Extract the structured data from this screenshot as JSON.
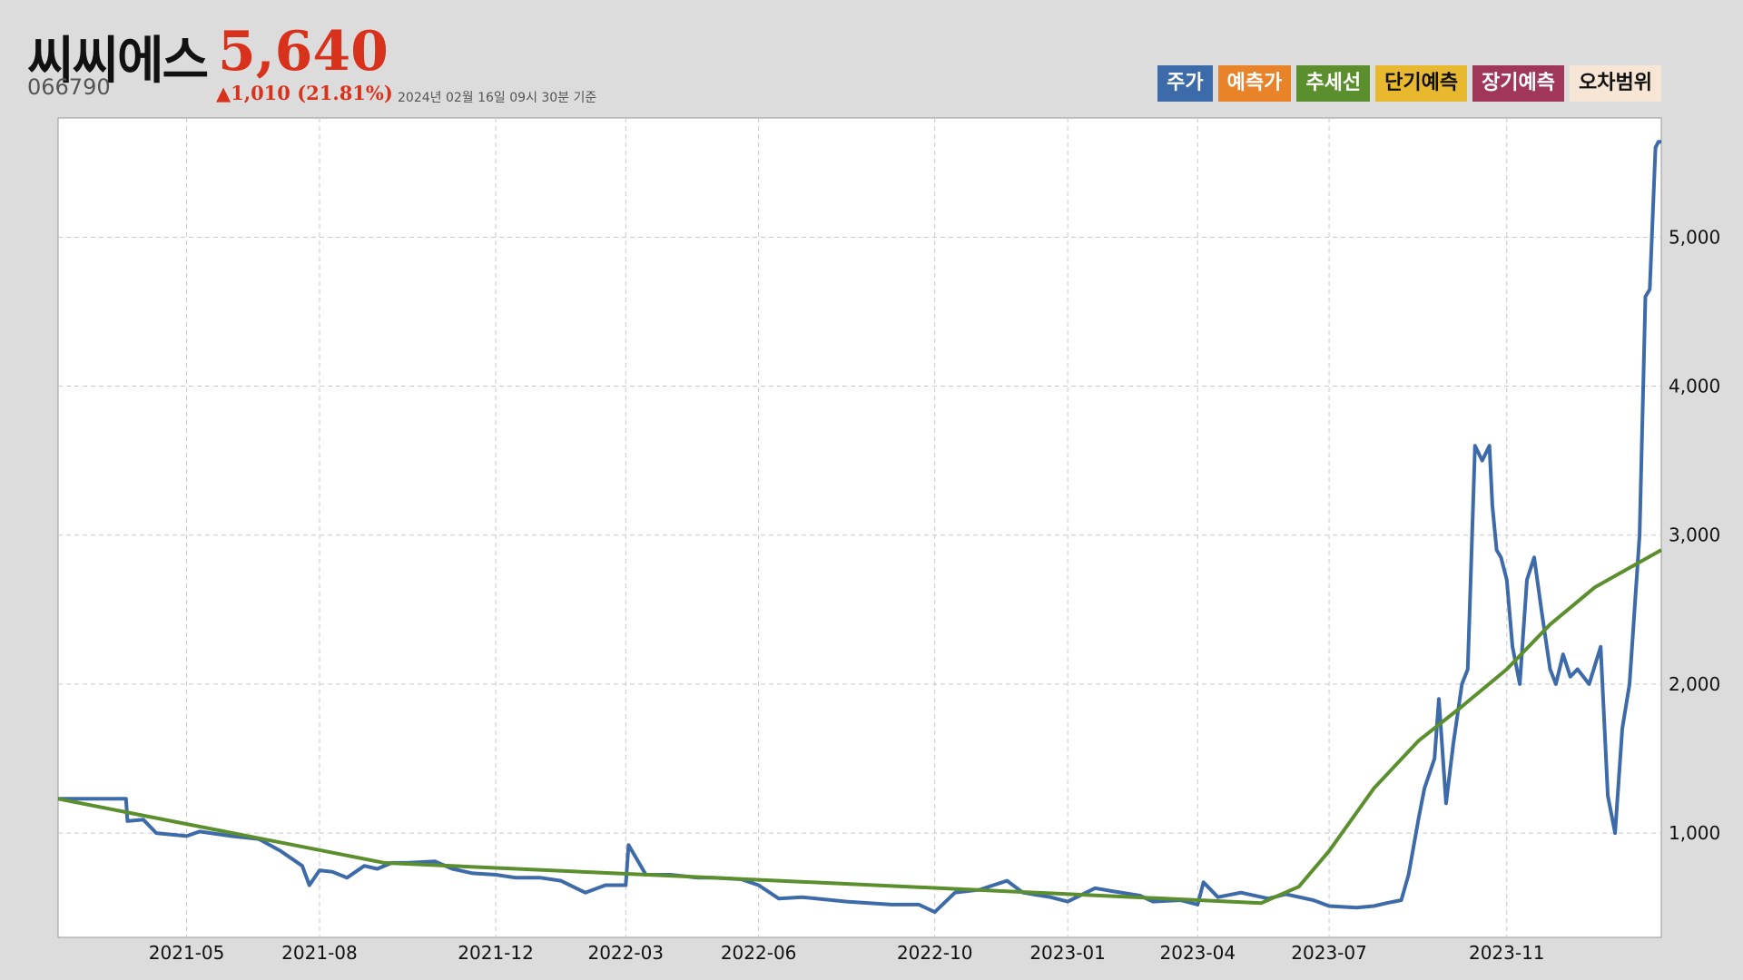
{
  "header": {
    "stock_name": "씨씨에스",
    "price": "5,640",
    "code": "066790",
    "change": "▲1,010 (21.81%)",
    "as_of": "2024년 02월 16일 09시 30분 기준"
  },
  "legend": [
    {
      "label": "주가",
      "bg": "#3d6aa8",
      "fg": "#ffffff"
    },
    {
      "label": "예측가",
      "bg": "#e8832a",
      "fg": "#ffffff"
    },
    {
      "label": "추세선",
      "bg": "#5b8f2e",
      "fg": "#ffffff"
    },
    {
      "label": "단기예측",
      "bg": "#e8b92e",
      "fg": "#111111"
    },
    {
      "label": "장기예측",
      "bg": "#a0365a",
      "fg": "#ffffff"
    },
    {
      "label": "오차범위",
      "bg": "#f7e6d6",
      "fg": "#111111"
    }
  ],
  "colors": {
    "price_line": "#3d6aa8",
    "trend_line": "#5b8f2e",
    "grid": "#c8c8c8",
    "up": "#d8321c"
  },
  "chart_data": {
    "type": "line",
    "y_ticks": [
      "1,000",
      "2,000",
      "3,000",
      "4,000",
      "5,000"
    ],
    "y_tick_values": [
      1000,
      2000,
      3000,
      4000,
      5000
    ],
    "x_ticks": [
      "2021-05",
      "2021-08",
      "2021-12",
      "2022-03",
      "2022-06",
      "2022-10",
      "2023-01",
      "2023-04",
      "2023-07",
      "2023-11"
    ],
    "x_tick_dates": [
      "2021-05-01",
      "2021-08-01",
      "2021-12-01",
      "2022-03-01",
      "2022-06-01",
      "2022-10-01",
      "2023-01-01",
      "2023-04-01",
      "2023-07-01",
      "2023-11-01"
    ],
    "xlim": [
      "2021-02-01",
      "2024-02-16"
    ],
    "ylim": [
      300,
      5800
    ],
    "grid": true,
    "legend_position": "top-right",
    "series": [
      {
        "name": "주가",
        "x": [
          "2021-02-01",
          "2021-03-20",
          "2021-03-21",
          "2021-04-01",
          "2021-04-10",
          "2021-05-01",
          "2021-05-10",
          "2021-06-01",
          "2021-06-20",
          "2021-07-05",
          "2021-07-20",
          "2021-07-25",
          "2021-08-01",
          "2021-08-10",
          "2021-08-20",
          "2021-09-01",
          "2021-09-10",
          "2021-09-20",
          "2021-10-01",
          "2021-10-20",
          "2021-11-01",
          "2021-11-15",
          "2021-12-01",
          "2021-12-15",
          "2022-01-01",
          "2022-01-15",
          "2022-02-01",
          "2022-02-15",
          "2022-03-01",
          "2022-03-03",
          "2022-03-15",
          "2022-04-01",
          "2022-04-20",
          "2022-05-01",
          "2022-05-20",
          "2022-06-01",
          "2022-06-15",
          "2022-07-01",
          "2022-08-01",
          "2022-09-01",
          "2022-09-20",
          "2022-10-01",
          "2022-10-15",
          "2022-11-01",
          "2022-11-20",
          "2022-12-01",
          "2022-12-20",
          "2023-01-01",
          "2023-01-20",
          "2023-02-01",
          "2023-02-20",
          "2023-03-01",
          "2023-03-20",
          "2023-04-01",
          "2023-04-05",
          "2023-04-15",
          "2023-05-01",
          "2023-05-20",
          "2023-06-01",
          "2023-06-20",
          "2023-07-01",
          "2023-07-20",
          "2023-08-01",
          "2023-08-10",
          "2023-08-20",
          "2023-08-25",
          "2023-09-01",
          "2023-09-05",
          "2023-09-12",
          "2023-09-15",
          "2023-09-20",
          "2023-09-25",
          "2023-10-01",
          "2023-10-05",
          "2023-10-10",
          "2023-10-15",
          "2023-10-20",
          "2023-10-22",
          "2023-10-25",
          "2023-10-28",
          "2023-11-01",
          "2023-11-05",
          "2023-11-10",
          "2023-11-15",
          "2023-11-20",
          "2023-11-25",
          "2023-12-01",
          "2023-12-05",
          "2023-12-10",
          "2023-12-15",
          "2023-12-20",
          "2023-12-28",
          "2024-01-05",
          "2024-01-10",
          "2024-01-15",
          "2024-01-20",
          "2024-01-25",
          "2024-02-01",
          "2024-02-05",
          "2024-02-08",
          "2024-02-12",
          "2024-02-14",
          "2024-02-16"
        ],
        "values": [
          1230,
          1230,
          1080,
          1090,
          1000,
          980,
          1010,
          980,
          960,
          880,
          780,
          650,
          750,
          740,
          700,
          780,
          760,
          800,
          800,
          810,
          760,
          730,
          720,
          700,
          700,
          680,
          600,
          650,
          650,
          920,
          720,
          720,
          700,
          700,
          690,
          650,
          560,
          570,
          540,
          520,
          520,
          470,
          600,
          620,
          680,
          600,
          570,
          540,
          630,
          610,
          580,
          540,
          550,
          520,
          670,
          570,
          600,
          560,
          590,
          550,
          510,
          500,
          510,
          530,
          550,
          720,
          1100,
          1300,
          1500,
          1900,
          1200,
          1600,
          2000,
          2100,
          3600,
          3500,
          3600,
          3200,
          2900,
          2850,
          2700,
          2250,
          2000,
          2700,
          2850,
          2500,
          2100,
          2000,
          2200,
          2050,
          2100,
          2000,
          2250,
          1250,
          1000,
          1700,
          2000,
          3000,
          4600,
          4650,
          5600,
          5640,
          5640
        ]
      },
      {
        "name": "추세선",
        "x": [
          "2021-02-01",
          "2021-09-15",
          "2022-06-15",
          "2023-05-15",
          "2023-06-10",
          "2023-07-01",
          "2023-08-01",
          "2023-09-01",
          "2023-10-01",
          "2023-11-01",
          "2023-12-01",
          "2024-01-01",
          "2024-02-16"
        ],
        "values": [
          1230,
          800,
          680,
          530,
          640,
          880,
          1300,
          1620,
          1850,
          2100,
          2400,
          2650,
          2900
        ]
      }
    ]
  }
}
